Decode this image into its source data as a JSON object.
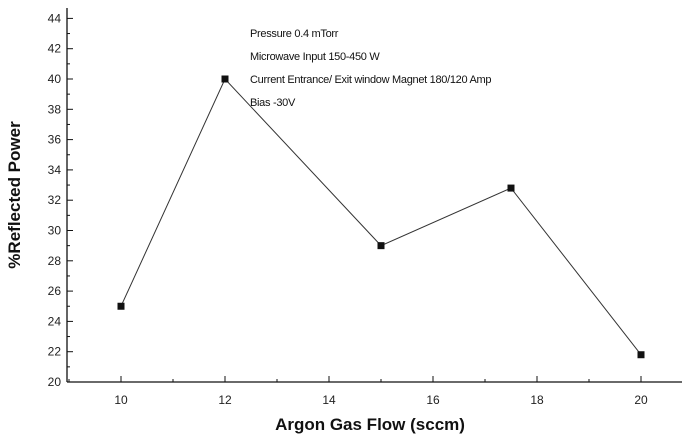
{
  "chart_data": {
    "type": "line",
    "xlabel": "Argon Gas Flow (sccm)",
    "ylabel": "%Reflected Power",
    "xlim": [
      9,
      21
    ],
    "ylim": [
      20,
      45
    ],
    "xticks": [
      10,
      12,
      14,
      16,
      18,
      20
    ],
    "yticks": [
      20,
      22,
      24,
      26,
      28,
      30,
      32,
      34,
      36,
      38,
      40,
      42,
      44
    ],
    "grid": false,
    "series": [
      {
        "x": [
          10,
          12,
          15,
          17.5,
          20
        ],
        "y": [
          25,
          40,
          29,
          32.8,
          21.8
        ]
      }
    ],
    "annotations": [
      "Pressure 0.4 mTorr",
      "Microwave Input 150-450 W",
      "Current Entrance/ Exit window Magnet 180/120 Amp",
      "Bias -30V"
    ]
  }
}
